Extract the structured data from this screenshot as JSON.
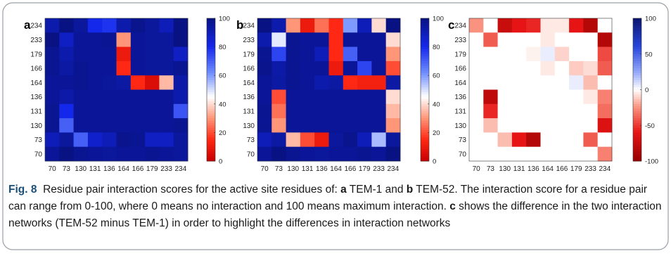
{
  "figure": {
    "caption_label": "Fig. 8",
    "caption_parts": [
      {
        "text": "Residue pair interaction scores for the active site residues of: ",
        "bold": false
      },
      {
        "text": "a",
        "bold": true
      },
      {
        "text": " TEM-1 and ",
        "bold": false
      },
      {
        "text": "b",
        "bold": true
      },
      {
        "text": " TEM-52. The interaction score for a residue pair can range from 0-100, where 0 means no interaction and 100 means maximum interaction. ",
        "bold": false
      },
      {
        "text": "c",
        "bold": true
      },
      {
        "text": " shows the difference in the two interaction networks (TEM-52 minus TEM-1) in order to highlight the differences in interaction networks",
        "bold": false
      }
    ]
  },
  "colors": {
    "high": "#0a1a8c",
    "mid_blue": "#1a3be0",
    "white": "#ffffff",
    "light_red": "#ff9a80",
    "low": "#cc0000",
    "border": "#9aa0a6"
  },
  "chart_data": [
    {
      "type": "heatmap",
      "panel": "a",
      "x_categories": [
        "70",
        "73",
        "130",
        "131",
        "136",
        "164",
        "166",
        "179",
        "233",
        "234"
      ],
      "y_categories": [
        "234",
        "233",
        "179",
        "166",
        "164",
        "136",
        "131",
        "130",
        "73",
        "70"
      ],
      "colorbar": {
        "min": 0,
        "max": 100,
        "ticks": [
          0,
          20,
          40,
          60,
          80,
          100
        ]
      },
      "values": [
        [
          92,
          100,
          95,
          80,
          78,
          92,
          98,
          95,
          90,
          100
        ],
        [
          100,
          88,
          96,
          96,
          97,
          30,
          96,
          95,
          95,
          100
        ],
        [
          97,
          92,
          96,
          96,
          96,
          10,
          96,
          95,
          95,
          88
        ],
        [
          97,
          94,
          97,
          96,
          96,
          15,
          96,
          95,
          95,
          97
        ],
        [
          96,
          96,
          97,
          96,
          95,
          94,
          15,
          5,
          35,
          93
        ],
        [
          96,
          93,
          96,
          96,
          96,
          96,
          96,
          96,
          96,
          92
        ],
        [
          97,
          80,
          96,
          96,
          96,
          96,
          96,
          96,
          96,
          72
        ],
        [
          97,
          70,
          96,
          96,
          96,
          96,
          96,
          96,
          96,
          97
        ],
        [
          90,
          95,
          70,
          86,
          90,
          98,
          97,
          88,
          88,
          95
        ],
        [
          96,
          100,
          97,
          96,
          95,
          96,
          96,
          97,
          96,
          95
        ]
      ]
    },
    {
      "type": "heatmap",
      "panel": "b",
      "x_categories": [
        "70",
        "73",
        "130",
        "131",
        "136",
        "164",
        "166",
        "179",
        "233",
        "234"
      ],
      "y_categories": [
        "234",
        "233",
        "179",
        "166",
        "164",
        "136",
        "131",
        "130",
        "73",
        "70"
      ],
      "colorbar": {
        "min": 0,
        "max": 100,
        "ticks": [
          0,
          20,
          40,
          60,
          80,
          100
        ]
      },
      "values": [
        [
          100,
          92,
          30,
          10,
          25,
          15,
          60,
          90,
          40,
          100
        ],
        [
          92,
          48,
          97,
          96,
          96,
          15,
          96,
          96,
          96,
          40
        ],
        [
          97,
          75,
          97,
          96,
          90,
          15,
          70,
          96,
          96,
          30
        ],
        [
          98,
          93,
          97,
          96,
          96,
          10,
          96,
          75,
          96,
          20
        ],
        [
          96,
          94,
          97,
          96,
          92,
          94,
          15,
          12,
          12,
          94
        ],
        [
          96,
          20,
          96,
          96,
          96,
          96,
          96,
          96,
          96,
          40
        ],
        [
          97,
          25,
          96,
          96,
          96,
          96,
          96,
          96,
          96,
          35
        ],
        [
          97,
          30,
          96,
          96,
          96,
          96,
          96,
          96,
          96,
          30
        ],
        [
          90,
          94,
          35,
          20,
          10,
          95,
          98,
          90,
          55,
          95
        ],
        [
          96,
          100,
          97,
          96,
          95,
          96,
          96,
          97,
          96,
          100
        ]
      ]
    },
    {
      "type": "heatmap",
      "panel": "c",
      "x_categories": [
        "70",
        "73",
        "130",
        "131",
        "136",
        "164",
        "166",
        "179",
        "233",
        "234"
      ],
      "y_categories": [
        "234",
        "233",
        "179",
        "166",
        "164",
        "136",
        "131",
        "130",
        "73",
        "70"
      ],
      "colorbar": {
        "min": -100,
        "max": 100,
        "ticks": [
          -100,
          -50,
          0,
          50,
          100
        ]
      },
      "values": [
        [
          -25,
          0,
          -75,
          -60,
          -55,
          -5,
          -5,
          -60,
          -85,
          0
        ],
        [
          0,
          -40,
          0,
          0,
          0,
          -5,
          0,
          0,
          0,
          -85
        ],
        [
          0,
          0,
          0,
          0,
          -3,
          5,
          -10,
          0,
          0,
          -45
        ],
        [
          0,
          0,
          0,
          0,
          0,
          -5,
          0,
          -12,
          -8,
          -40
        ],
        [
          0,
          0,
          0,
          0,
          0,
          0,
          0,
          5,
          -15,
          0
        ],
        [
          0,
          -80,
          0,
          0,
          0,
          0,
          0,
          0,
          -5,
          -30
        ],
        [
          0,
          -55,
          0,
          0,
          0,
          0,
          0,
          0,
          0,
          -35
        ],
        [
          0,
          -15,
          0,
          0,
          0,
          0,
          0,
          0,
          0,
          -65
        ],
        [
          0,
          0,
          -15,
          -60,
          -85,
          0,
          0,
          0,
          -40,
          0
        ],
        [
          0,
          0,
          0,
          0,
          0,
          0,
          0,
          0,
          0,
          -30
        ]
      ]
    }
  ]
}
